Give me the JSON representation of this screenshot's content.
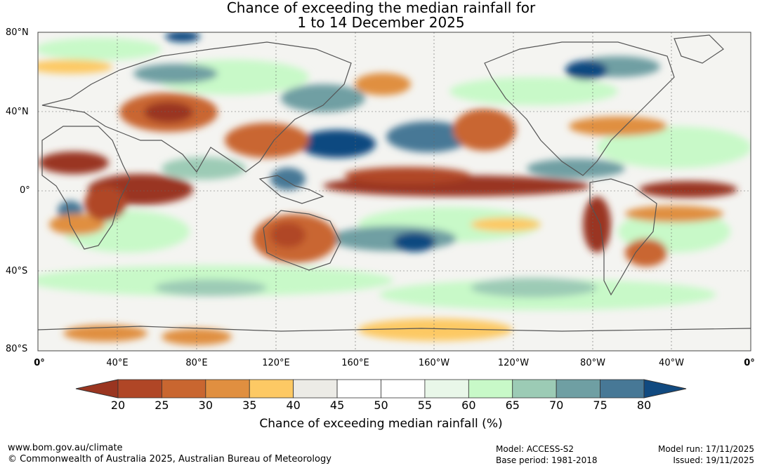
{
  "title_line1": "Chance of exceeding the median rainfall for",
  "title_line2": "1 to 14 December 2025",
  "lat_labels": [
    "80°N",
    "40°N",
    "0°",
    "40°S",
    "80°S"
  ],
  "lon_labels": [
    "0°",
    "40°E",
    "80°E",
    "120°E",
    "160°E",
    "160°W",
    "120°W",
    "80°W",
    "40°W",
    "0°"
  ],
  "colorbar": {
    "ticks": [
      "20",
      "25",
      "30",
      "35",
      "40",
      "45",
      "50",
      "55",
      "60",
      "65",
      "70",
      "75",
      "80"
    ],
    "under_color": "#9a3520",
    "over_color": "#114a80",
    "bin_colors": [
      "#b04626",
      "#c96630",
      "#e08f40",
      "#fdc964",
      "#ecebe6",
      "#ffffff",
      "#ffffff",
      "#e9f7e9",
      "#c8f9c8",
      "#9ccbb5",
      "#6f9fa3",
      "#477896"
    ],
    "label": "Chance of exceeding median rainfall (%)"
  },
  "footer": {
    "website": "www.bom.gov.au/climate",
    "copyright": "© Commonwealth of Australia 2025, Australian Bureau of Meteorology",
    "model": "Model: ACCESS-S2",
    "base_period": "Base period: 1981-2018",
    "model_run": "Model run: 17/11/2025",
    "issued": "Issued: 19/11/2025"
  }
}
